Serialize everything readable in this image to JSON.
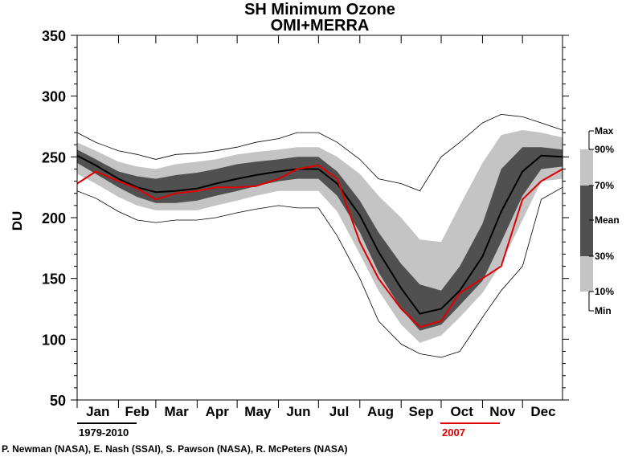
{
  "chart_data": {
    "type": "area",
    "title": "SH Minimum Ozone",
    "subtitle": "OMI+MERRA",
    "ylabel": "DU",
    "xlabel": "",
    "ylim": [
      50,
      350
    ],
    "yticks": [
      50,
      100,
      150,
      200,
      250,
      300,
      350
    ],
    "months": [
      "Jan",
      "Feb",
      "Mar",
      "Apr",
      "May",
      "Jun",
      "Jul",
      "Aug",
      "Sep",
      "Oct",
      "Nov",
      "Dec"
    ],
    "day_of_year": [
      1,
      15,
      32,
      46,
      60,
      75,
      91,
      105,
      121,
      135,
      152,
      166,
      182,
      196,
      213,
      227,
      244,
      258,
      274,
      288,
      305,
      319,
      335,
      349,
      365
    ],
    "series": [
      {
        "name": "Max",
        "values": [
          270,
          262,
          255,
          252,
          248,
          252,
          253,
          255,
          258,
          262,
          265,
          270,
          270,
          262,
          248,
          232,
          228,
          222,
          250,
          262,
          278,
          285,
          283,
          278,
          272
        ]
      },
      {
        "name": "90%",
        "values": [
          262,
          255,
          246,
          242,
          240,
          244,
          246,
          248,
          252,
          254,
          256,
          258,
          258,
          250,
          236,
          218,
          200,
          182,
          180,
          210,
          245,
          268,
          272,
          270,
          266
        ]
      },
      {
        "name": "70%",
        "values": [
          256,
          248,
          238,
          234,
          232,
          235,
          237,
          240,
          244,
          246,
          248,
          250,
          250,
          238,
          214,
          188,
          162,
          145,
          140,
          160,
          195,
          240,
          258,
          258,
          256
        ]
      },
      {
        "name": "Mean",
        "values": [
          251,
          243,
          232,
          225,
          221,
          222,
          224,
          228,
          232,
          235,
          238,
          240,
          240,
          228,
          202,
          172,
          142,
          121,
          125,
          140,
          168,
          205,
          238,
          251,
          250
        ]
      },
      {
        "name": "30%",
        "values": [
          245,
          236,
          225,
          217,
          212,
          212,
          214,
          218,
          222,
          226,
          230,
          232,
          232,
          218,
          188,
          155,
          125,
          107,
          112,
          128,
          148,
          180,
          218,
          240,
          242
        ]
      },
      {
        "name": "10%",
        "values": [
          236,
          228,
          217,
          210,
          206,
          206,
          206,
          210,
          214,
          218,
          222,
          222,
          222,
          205,
          170,
          140,
          112,
          97,
          103,
          118,
          138,
          162,
          198,
          230,
          232
        ]
      },
      {
        "name": "Min",
        "values": [
          222,
          216,
          205,
          198,
          196,
          198,
          198,
          200,
          204,
          207,
          210,
          208,
          208,
          185,
          150,
          115,
          96,
          88,
          85,
          90,
          118,
          140,
          160,
          215,
          225
        ]
      },
      {
        "name": "2007",
        "values": [
          228,
          238,
          230,
          224,
          215,
          220,
          222,
          225,
          225,
          226,
          232,
          240,
          243,
          232,
          180,
          150,
          125,
          110,
          115,
          138,
          150,
          160,
          215,
          230,
          240
        ]
      }
    ],
    "legend": {
      "placement": "right",
      "labels": [
        "Max",
        "90%",
        "70%",
        "Mean",
        "30%",
        "10%",
        "Min"
      ]
    },
    "colors": {
      "band_outer": "#c4c4c4",
      "band_inner": "#505050",
      "mean_line": "#000000",
      "extreme_lines": "#000000",
      "year_line": "#e00000"
    },
    "reference_labels": {
      "climatology": "1979-2010",
      "year": "2007"
    },
    "credit": "P. Newman (NASA), E. Nash (SSAI), S. Pawson (NASA), R. McPeters (NASA)"
  }
}
